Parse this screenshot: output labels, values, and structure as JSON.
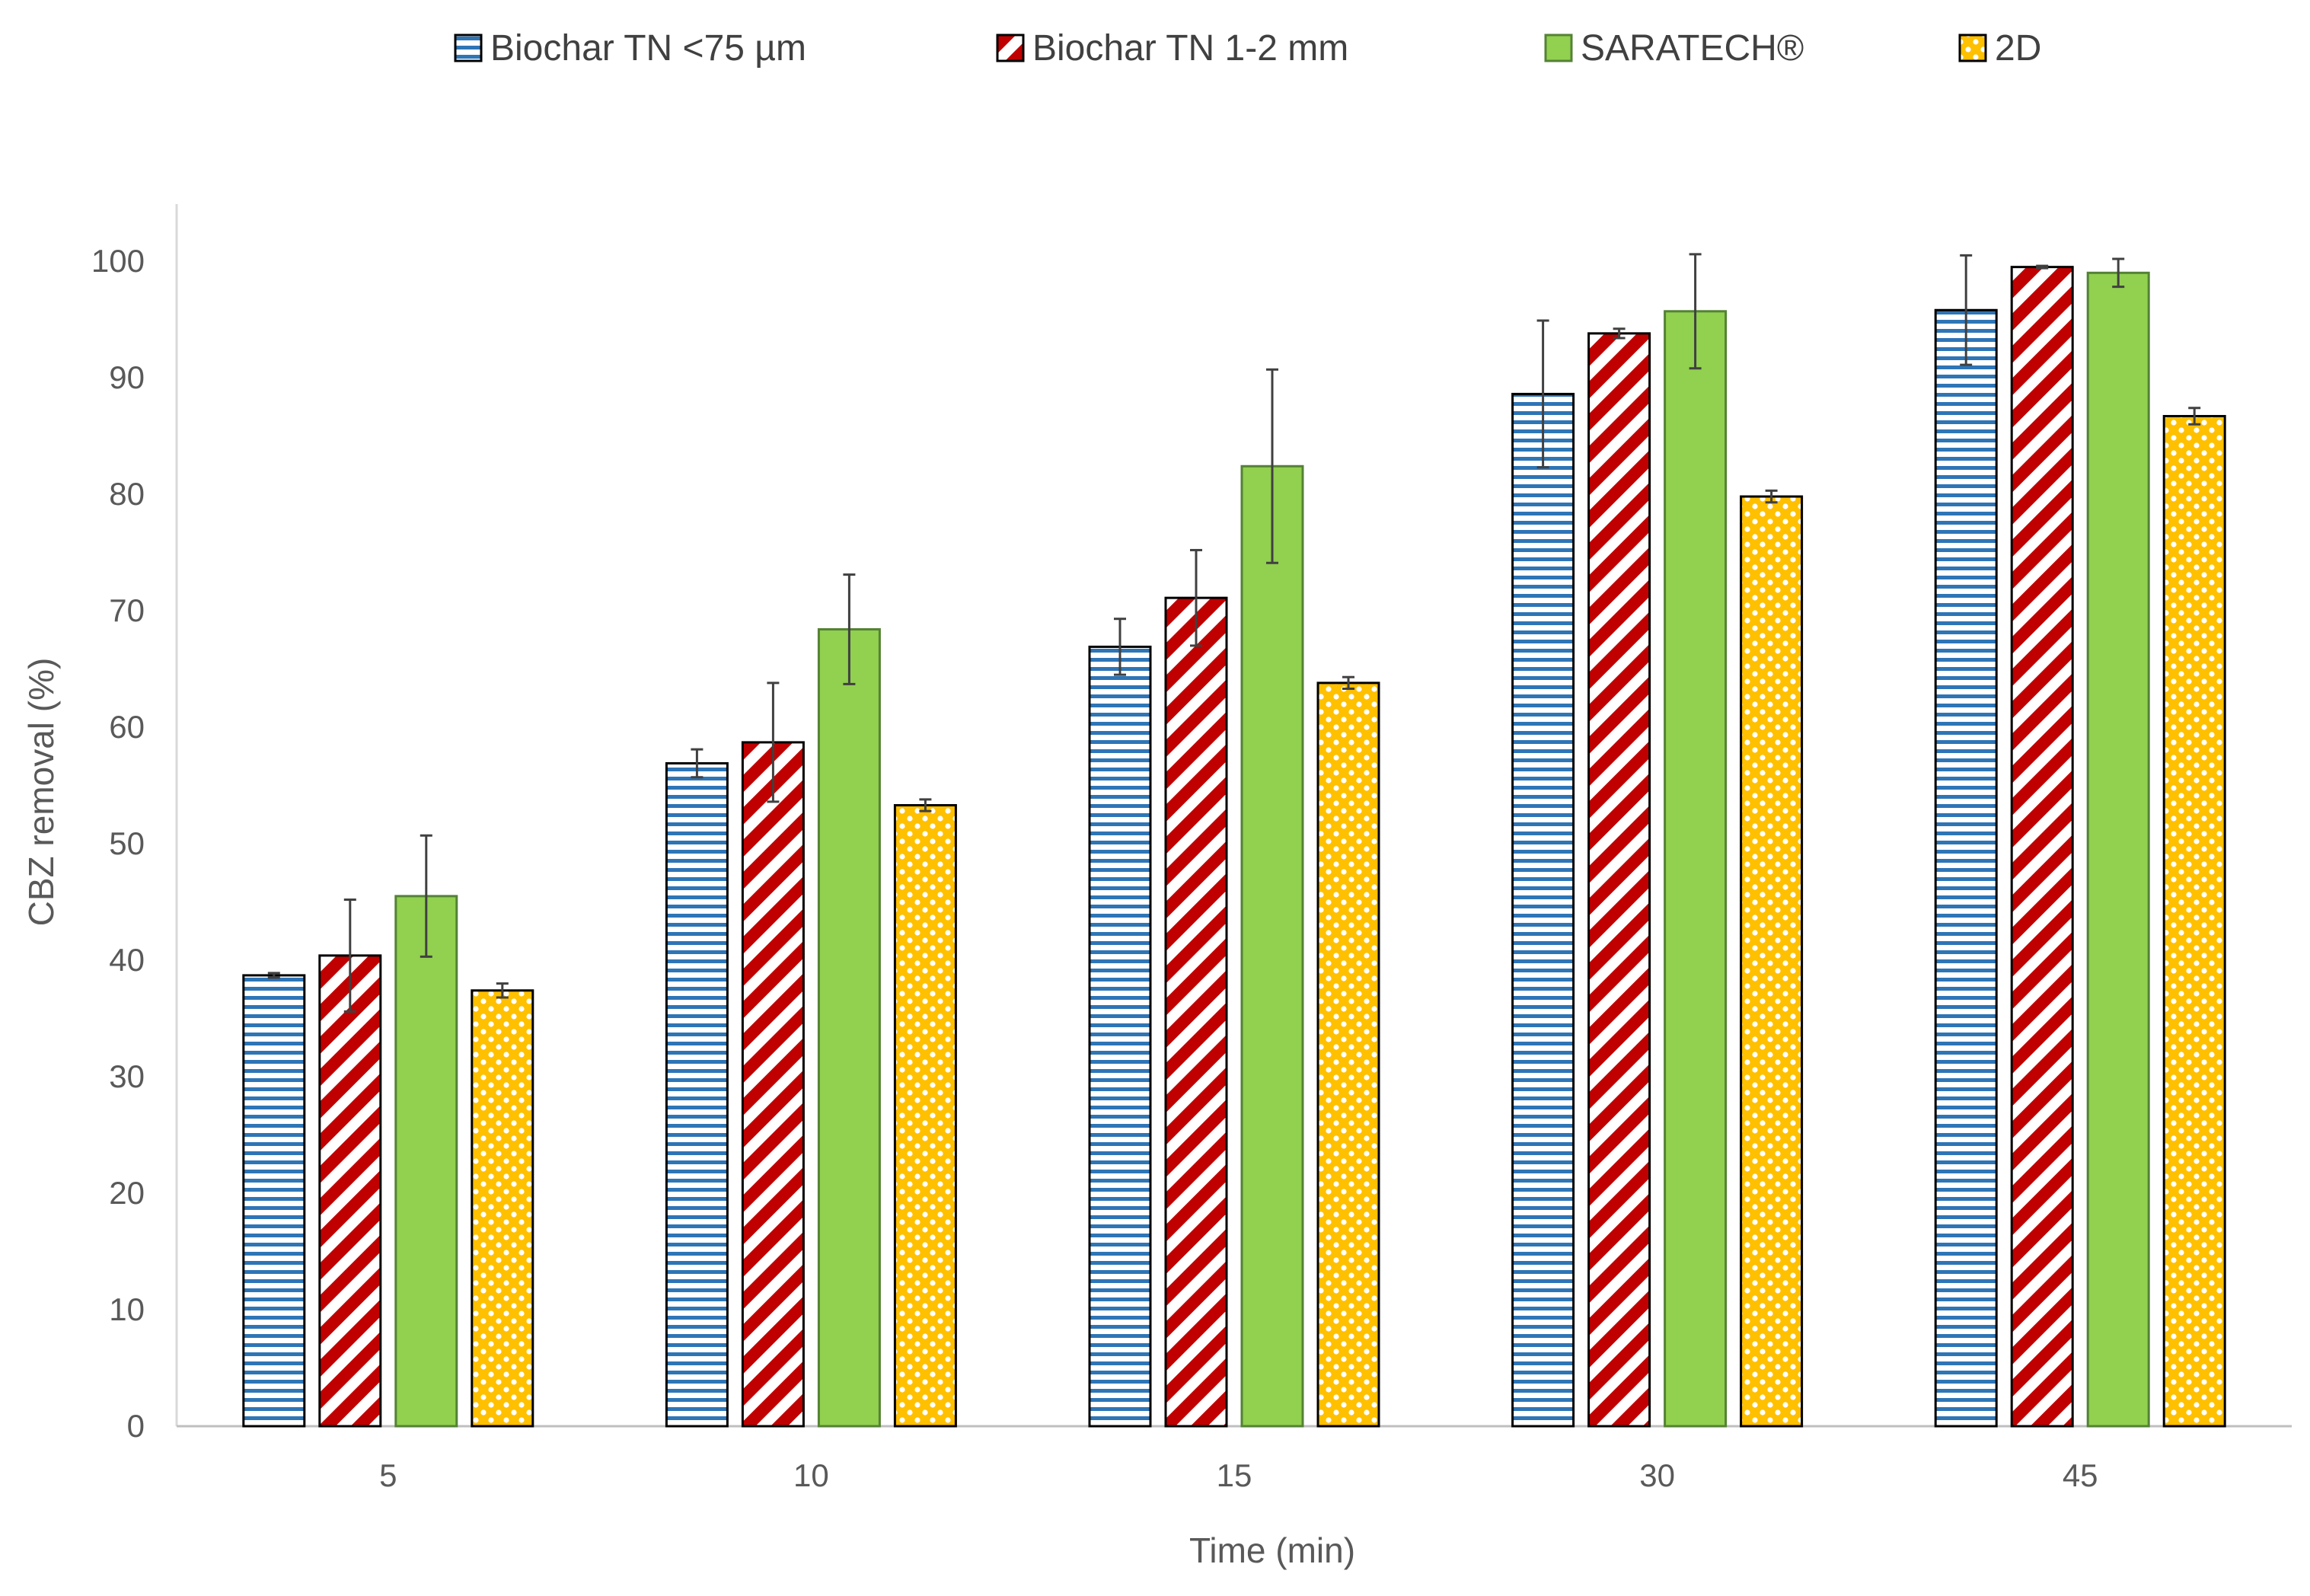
{
  "chart_data": {
    "type": "bar",
    "title": "",
    "xlabel": "Time (min)",
    "ylabel": "CBZ removal (%)",
    "ylim": [
      0,
      100
    ],
    "yticks": [
      "0",
      "10",
      "20",
      "30",
      "40",
      "50",
      "60",
      "70",
      "80",
      "90",
      "100"
    ],
    "categories": [
      "5",
      "10",
      "15",
      "30",
      "45"
    ],
    "grid": false,
    "legend_position": "top",
    "series": [
      {
        "name": "Biochar TN <75 µm",
        "pattern": "horizontal-lines",
        "color": "#2E75B6",
        "border": "#000000",
        "values": [
          38.7,
          56.9,
          66.9,
          88.6,
          95.8
        ],
        "errors": [
          0.2,
          1.2,
          2.4,
          6.3,
          4.7
        ]
      },
      {
        "name": "Biochar TN 1-2 mm",
        "pattern": "diagonal-stripes",
        "color": "#C00000",
        "border": "#000000",
        "values": [
          40.4,
          58.7,
          71.1,
          93.8,
          99.5
        ],
        "errors": [
          4.8,
          5.1,
          4.1,
          0.4,
          0.1
        ]
      },
      {
        "name": "SARATECH®",
        "pattern": "solid",
        "color": "#92D050",
        "border": "#548235",
        "values": [
          45.5,
          68.4,
          82.4,
          95.7,
          99.0
        ],
        "errors": [
          5.2,
          4.7,
          8.3,
          4.9,
          1.2
        ]
      },
      {
        "name": "2D",
        "pattern": "dots",
        "color": "#FFC000",
        "border": "#000000",
        "values": [
          37.4,
          53.3,
          63.8,
          79.8,
          86.7
        ],
        "errors": [
          0.6,
          0.5,
          0.5,
          0.5,
          0.7
        ]
      }
    ]
  }
}
